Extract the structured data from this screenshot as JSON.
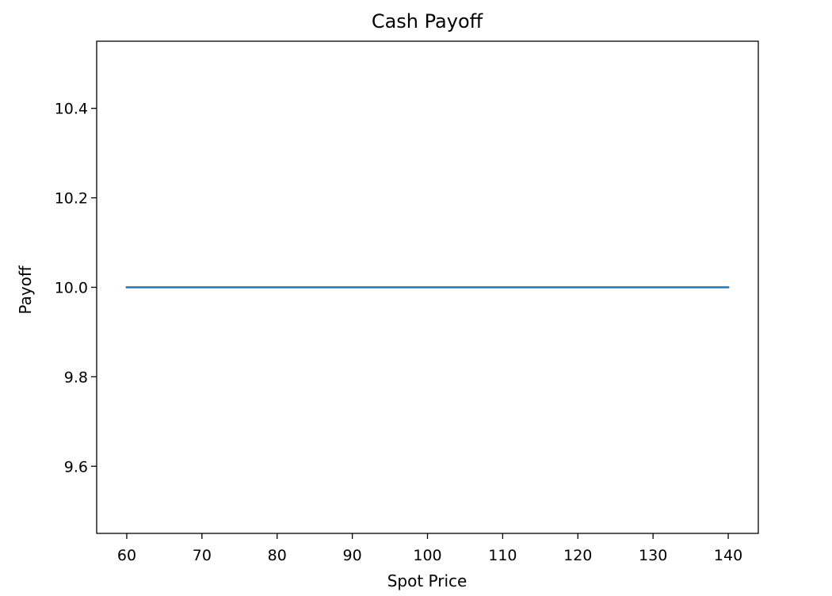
{
  "chart_data": {
    "type": "line",
    "title": "Cash Payoff",
    "xlabel": "Spot Price",
    "ylabel": "Payoff",
    "xlim": [
      56,
      144
    ],
    "ylim": [
      9.45,
      10.55
    ],
    "xticks": [
      60,
      70,
      80,
      90,
      100,
      110,
      120,
      130,
      140
    ],
    "xtick_labels": [
      "60",
      "70",
      "80",
      "90",
      "100",
      "110",
      "120",
      "130",
      "140"
    ],
    "yticks": [
      9.6,
      9.8,
      10.0,
      10.2,
      10.4
    ],
    "ytick_labels": [
      "9.6",
      "9.8",
      "10.0",
      "10.2",
      "10.4"
    ],
    "grid": false,
    "series": [
      {
        "color": "#1f77b4",
        "x": [
          60,
          140
        ],
        "y": [
          10.0,
          10.0
        ]
      }
    ]
  }
}
